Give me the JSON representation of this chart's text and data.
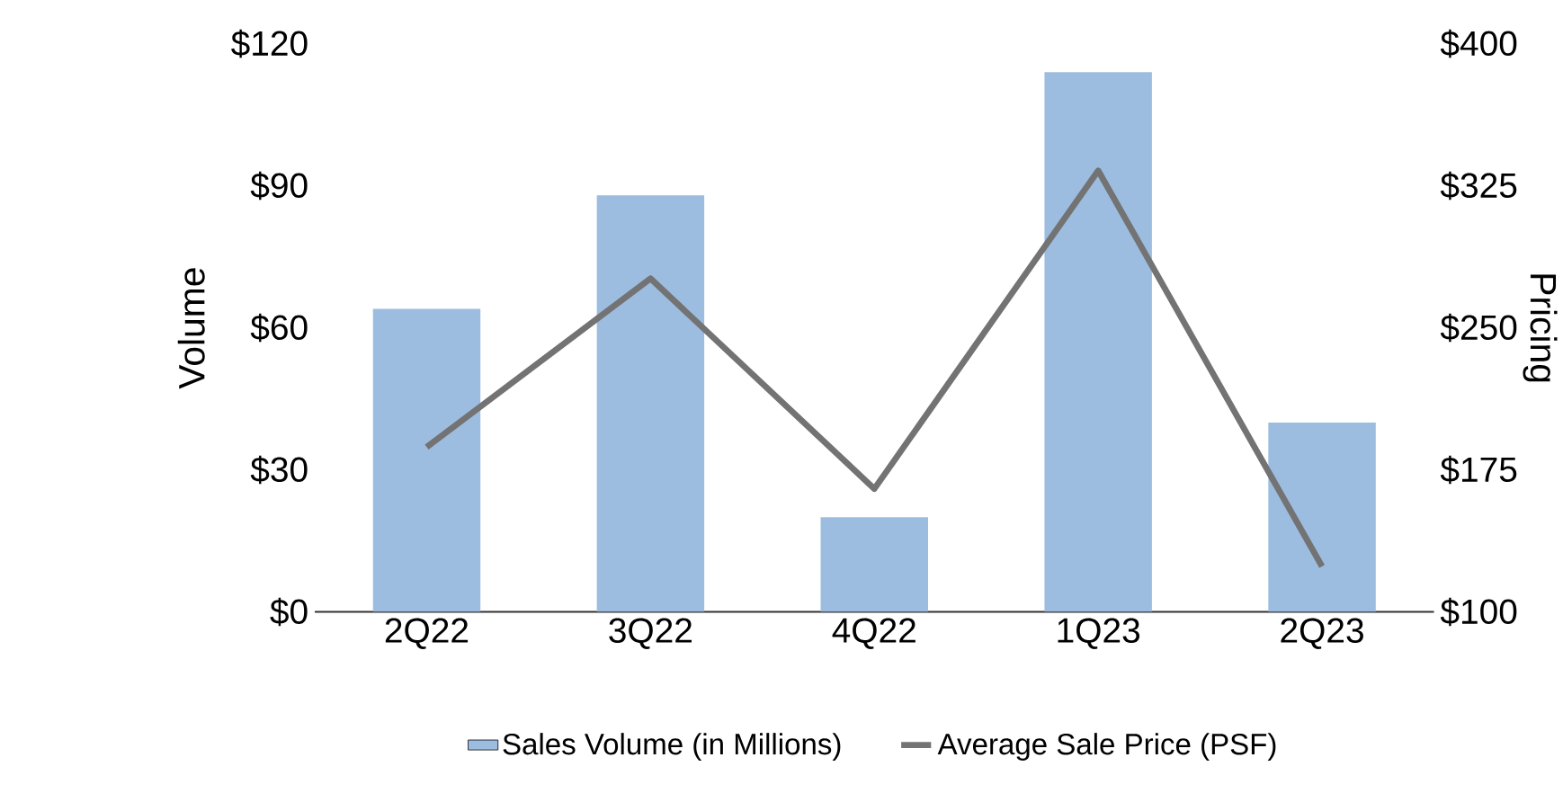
{
  "chart_data": {
    "type": "bar",
    "categories": [
      "2Q22",
      "3Q22",
      "4Q22",
      "1Q23",
      "2Q23"
    ],
    "ylabel": "Volume",
    "y2label": "Pricing",
    "ylim": [
      0,
      120
    ],
    "yticks": [
      {
        "value": 0,
        "label": "$0"
      },
      {
        "value": 30,
        "label": "$30"
      },
      {
        "value": 60,
        "label": "$60"
      },
      {
        "value": 90,
        "label": "$90"
      },
      {
        "value": 120,
        "label": "$120"
      }
    ],
    "y2lim": [
      100,
      400
    ],
    "y2ticks": [
      {
        "value": 100,
        "label": "$100"
      },
      {
        "value": 175,
        "label": "$175"
      },
      {
        "value": 250,
        "label": "$250"
      },
      {
        "value": 325,
        "label": "$325"
      },
      {
        "value": 400,
        "label": "$400"
      }
    ],
    "series": [
      {
        "name": "Sales Volume (in Millions)",
        "color": "#9dbde0",
        "values": [
          64,
          88,
          20,
          114,
          40
        ]
      },
      {
        "name": "Average Sale Price (PSF)",
        "type": "line",
        "axis": "y2",
        "color": "#737373",
        "values": [
          187,
          276,
          165,
          333,
          124
        ]
      }
    ],
    "legend": "bottom",
    "grid": false
  }
}
